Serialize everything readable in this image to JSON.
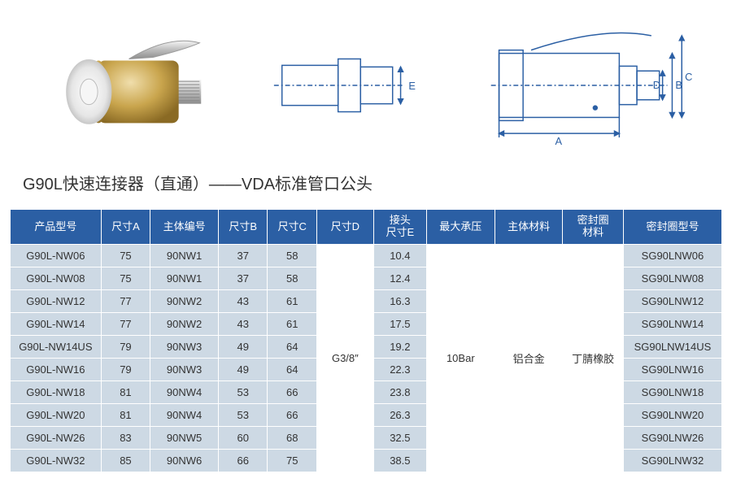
{
  "title": "G90L快速连接器（直通）——VDA标准管口公头",
  "columns": [
    "产品型号",
    "尺寸A",
    "主体编号",
    "尺寸B",
    "尺寸C",
    "尺寸D",
    "接头\n尺寸E",
    "最大承压",
    "主体材料",
    "密封圈\n材料",
    "密封圈型号"
  ],
  "col_widths": [
    "12%",
    "6.5%",
    "9%",
    "6.5%",
    "6.5%",
    "7.5%",
    "7%",
    "9%",
    "9%",
    "8%",
    "13%"
  ],
  "merged": {
    "dimD": "G3/8″",
    "maxP": "10Bar",
    "bodyMat": "铝合金",
    "sealMat": "丁腈橡胶"
  },
  "rows": [
    {
      "model": "G90L-NW06",
      "A": "75",
      "body": "90NW1",
      "B": "37",
      "C": "58",
      "E": "10.4",
      "seal": "SG90LNW06"
    },
    {
      "model": "G90L-NW08",
      "A": "75",
      "body": "90NW1",
      "B": "37",
      "C": "58",
      "E": "12.4",
      "seal": "SG90LNW08"
    },
    {
      "model": "G90L-NW12",
      "A": "77",
      "body": "90NW2",
      "B": "43",
      "C": "61",
      "E": "16.3",
      "seal": "SG90LNW12"
    },
    {
      "model": "G90L-NW14",
      "A": "77",
      "body": "90NW2",
      "B": "43",
      "C": "61",
      "E": "17.5",
      "seal": "SG90LNW14"
    },
    {
      "model": "G90L-NW14US",
      "A": "79",
      "body": "90NW3",
      "B": "49",
      "C": "64",
      "E": "19.2",
      "seal": "SG90LNW14US"
    },
    {
      "model": "G90L-NW16",
      "A": "79",
      "body": "90NW3",
      "B": "49",
      "C": "64",
      "E": "22.3",
      "seal": "SG90LNW16"
    },
    {
      "model": "G90L-NW18",
      "A": "81",
      "body": "90NW4",
      "B": "53",
      "C": "66",
      "E": "23.8",
      "seal": "SG90LNW18"
    },
    {
      "model": "G90L-NW20",
      "A": "81",
      "body": "90NW4",
      "B": "53",
      "C": "66",
      "E": "26.3",
      "seal": "SG90LNW20"
    },
    {
      "model": "G90L-NW26",
      "A": "83",
      "body": "90NW5",
      "B": "60",
      "C": "68",
      "E": "32.5",
      "seal": "SG90LNW26"
    },
    {
      "model": "G90L-NW32",
      "A": "85",
      "body": "90NW6",
      "B": "66",
      "C": "75",
      "E": "38.5",
      "seal": "SG90LNW32"
    }
  ],
  "colors": {
    "header_bg": "#2b5fa4",
    "header_fg": "#ffffff",
    "cell_bg": "#cdd9e4",
    "cell_fg": "#333333",
    "merged_bg": "#ffffff",
    "diagram_stroke": "#2b5fa4",
    "brass1": "#d4b05a",
    "brass2": "#9a7a2a",
    "steel1": "#e8e8e8",
    "steel2": "#9f9f9f"
  },
  "diagram_labels": {
    "A": "A",
    "B": "B",
    "C": "C",
    "D": "D",
    "E": "E"
  }
}
